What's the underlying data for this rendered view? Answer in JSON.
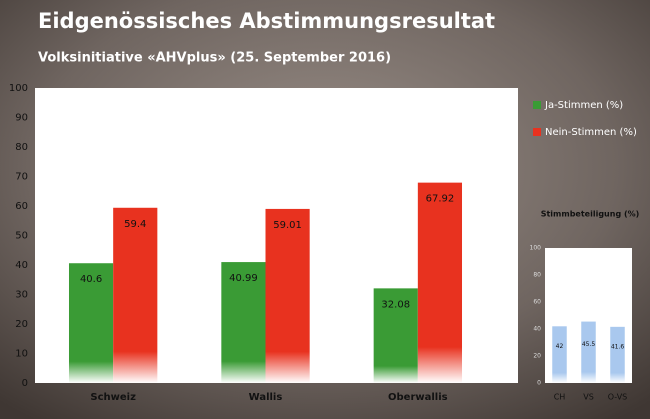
{
  "chart_data": [
    {
      "type": "bar",
      "title": "Eidgenössisches Abstimmungsresultat",
      "subtitle": "Volksinitiative «AHVplus» (25. September 2016)",
      "categories": [
        "Schweiz",
        "Wallis",
        "Oberwallis"
      ],
      "series": [
        {
          "name": "Ja-Stimmen (%)",
          "color": "#3a9b35",
          "values": [
            40.6,
            40.99,
            32.08
          ]
        },
        {
          "name": "Nein-Stimmen (%)",
          "color": "#e8321f",
          "values": [
            59.4,
            59.01,
            67.92
          ]
        }
      ],
      "ylim": [
        0,
        100
      ],
      "yticks": [
        0,
        10,
        20,
        30,
        40,
        50,
        60,
        70,
        80,
        90,
        100
      ],
      "grid": false,
      "legend": "right"
    },
    {
      "type": "bar",
      "title": "Stimmbeteiligung (%)",
      "categories": [
        "CH",
        "VS",
        "O-VS"
      ],
      "values": [
        42,
        45.5,
        41.6
      ],
      "color": "#a9c8ee",
      "ylim": [
        0,
        100
      ],
      "yticks": [
        0,
        20,
        40,
        60,
        80,
        100
      ],
      "grid": false
    }
  ]
}
